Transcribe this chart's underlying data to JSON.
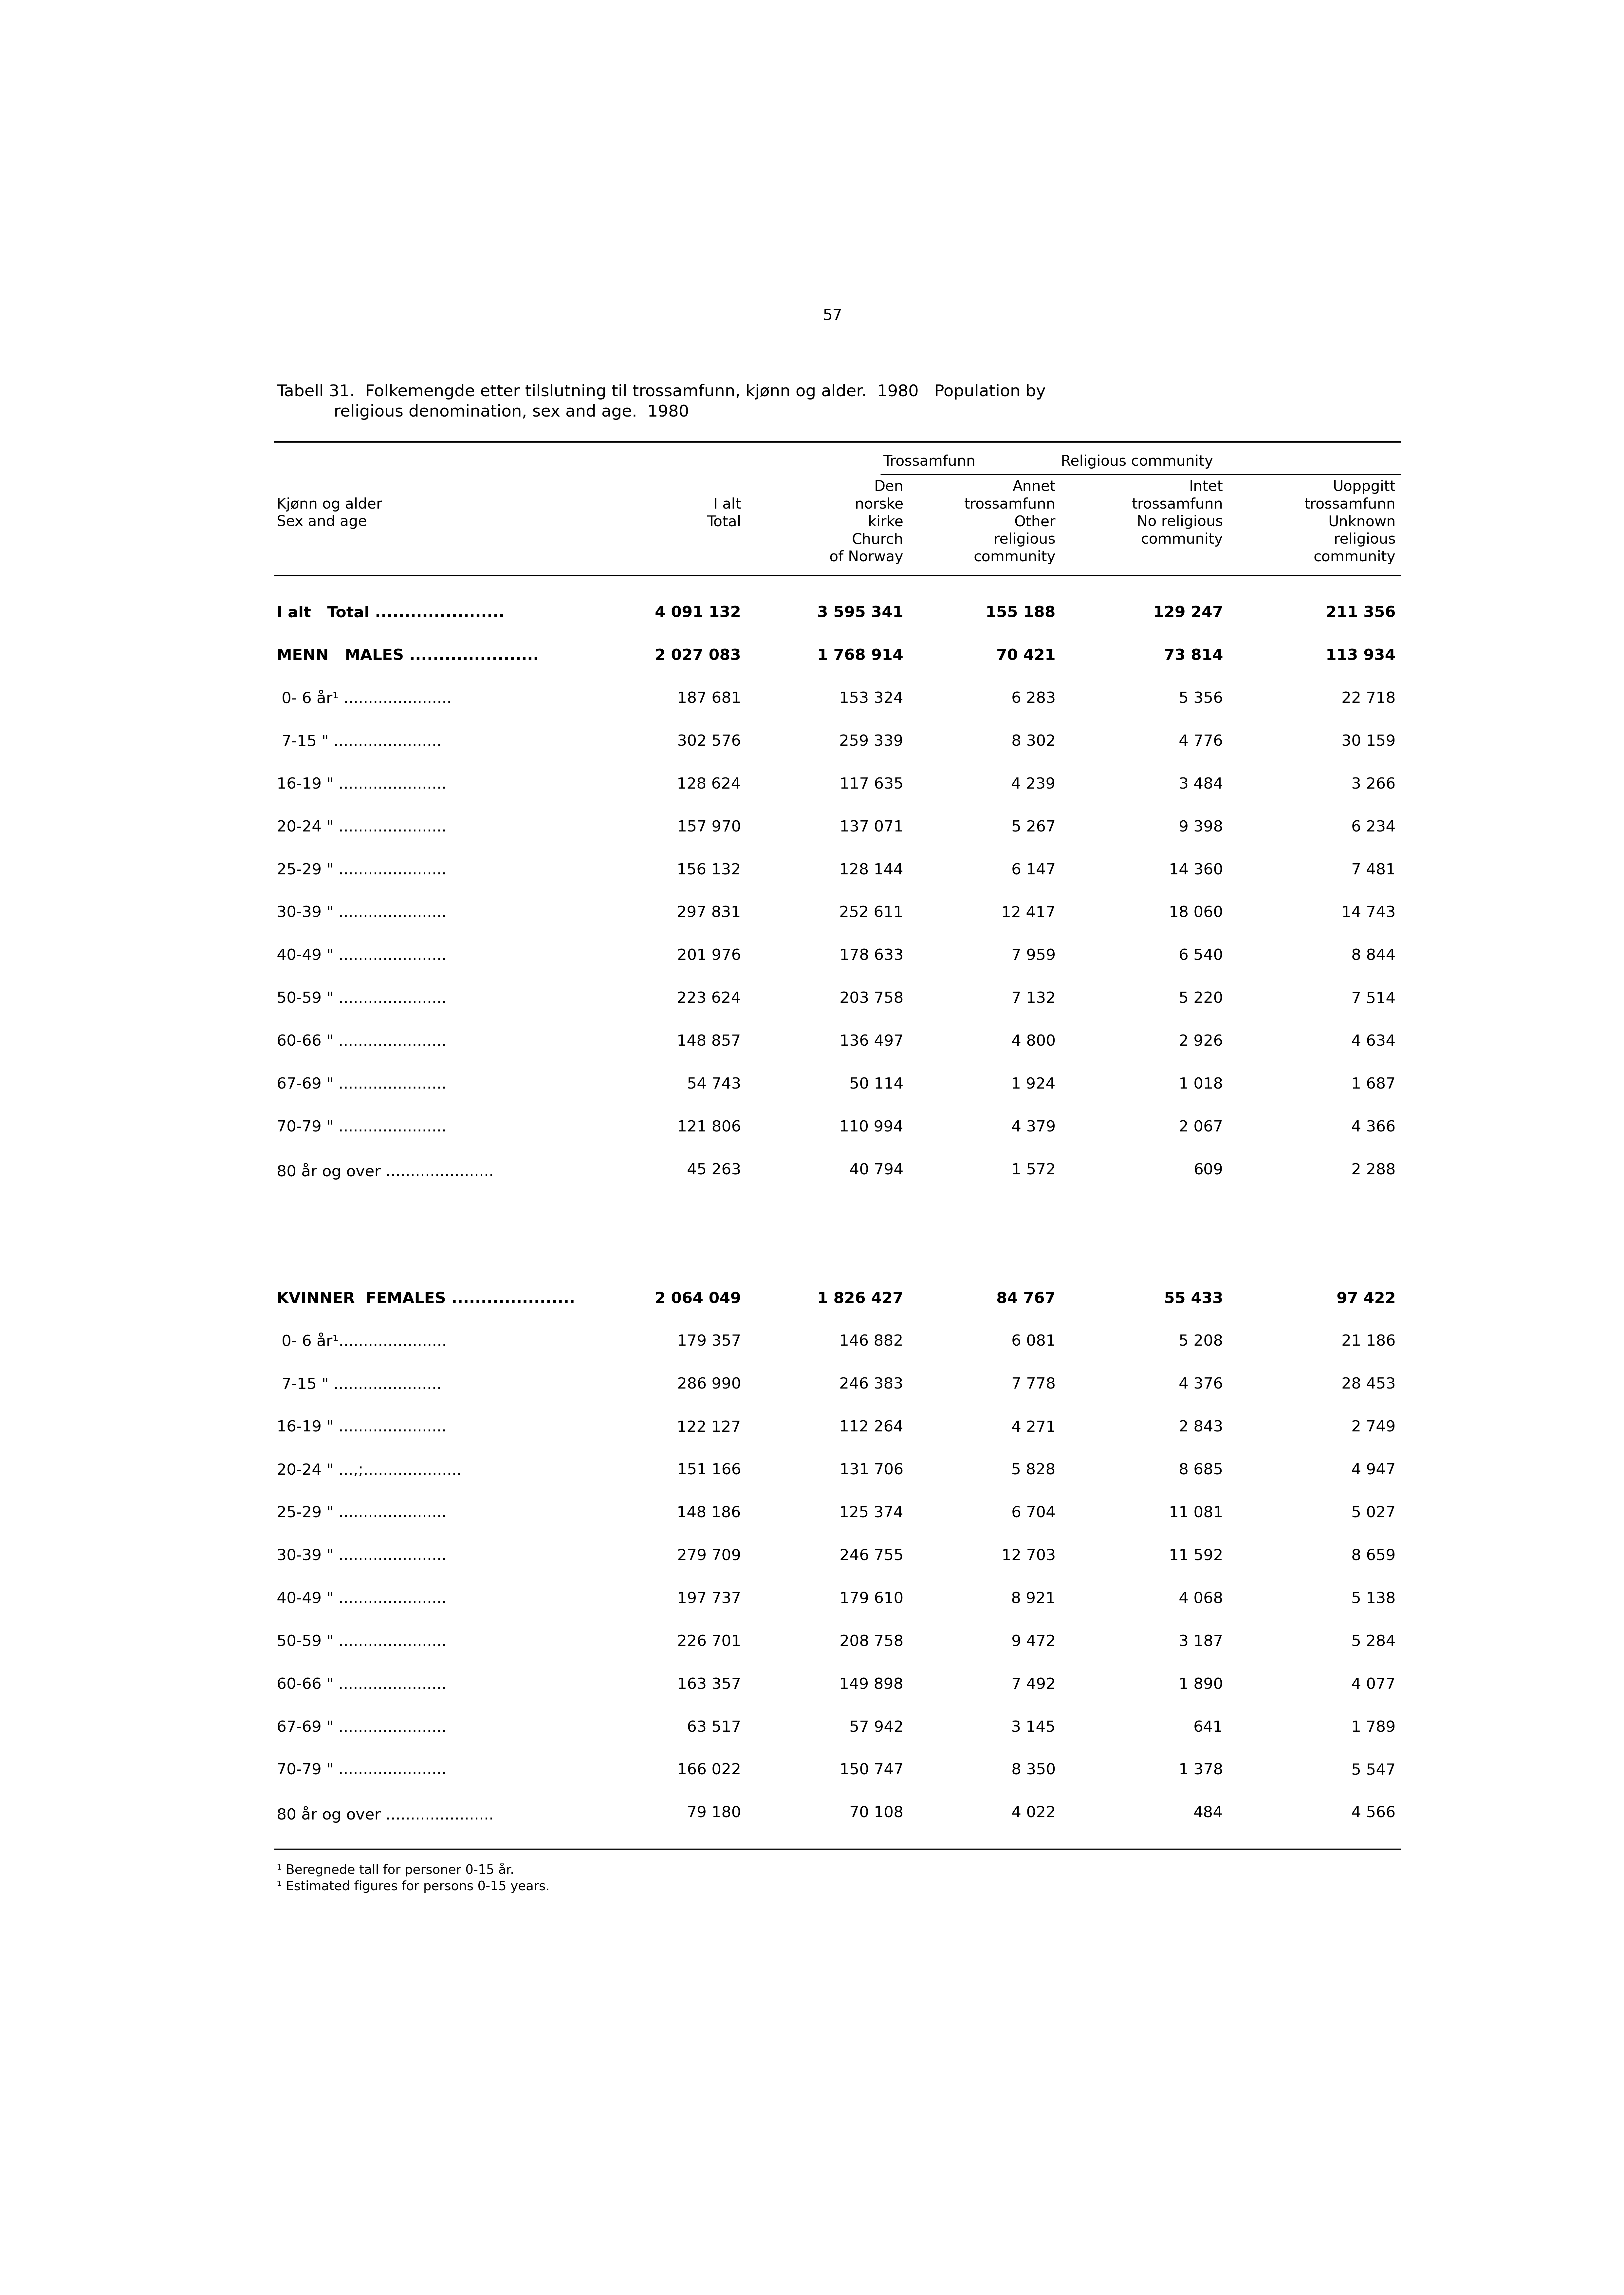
{
  "page_number": "57",
  "title_line1": "Tabell 31.  Folkemengde etter tilslutning til trossamfunn, kjønn og alder.  1980   Population by",
  "title_line2": "           religious denomination, sex and age.  1980",
  "col_header_group1": "Trossamfunn",
  "col_header_group2": "Religious community",
  "rows": [
    {
      "label": "I alt   Total ......................",
      "bold": true,
      "values": [
        "4 091 132",
        "3 595 341",
        "155 188",
        "129 247",
        "211 356"
      ]
    },
    {
      "label": "MENN   MALES ......................",
      "bold": true,
      "values": [
        "2 027 083",
        "1 768 914",
        "70 421",
        "73 814",
        "113 934"
      ]
    },
    {
      "label": " 0- 6 år¹ ......................",
      "bold": false,
      "values": [
        "187 681",
        "153 324",
        "6 283",
        "5 356",
        "22 718"
      ]
    },
    {
      "label": " 7-15 \" ......................",
      "bold": false,
      "values": [
        "302 576",
        "259 339",
        "8 302",
        "4 776",
        "30 159"
      ]
    },
    {
      "label": "16-19 \" ......................",
      "bold": false,
      "values": [
        "128 624",
        "117 635",
        "4 239",
        "3 484",
        "3 266"
      ]
    },
    {
      "label": "20-24 \" ......................",
      "bold": false,
      "values": [
        "157 970",
        "137 071",
        "5 267",
        "9 398",
        "6 234"
      ]
    },
    {
      "label": "25-29 \" ......................",
      "bold": false,
      "values": [
        "156 132",
        "128 144",
        "6 147",
        "14 360",
        "7 481"
      ]
    },
    {
      "label": "30-39 \" ......................",
      "bold": false,
      "values": [
        "297 831",
        "252 611",
        "12 417",
        "18 060",
        "14 743"
      ]
    },
    {
      "label": "40-49 \" ......................",
      "bold": false,
      "values": [
        "201 976",
        "178 633",
        "7 959",
        "6 540",
        "8 844"
      ]
    },
    {
      "label": "50-59 \" ......................",
      "bold": false,
      "values": [
        "223 624",
        "203 758",
        "7 132",
        "5 220",
        "7 514"
      ]
    },
    {
      "label": "60-66 \" ......................",
      "bold": false,
      "values": [
        "148 857",
        "136 497",
        "4 800",
        "2 926",
        "4 634"
      ]
    },
    {
      "label": "67-69 \" ......................",
      "bold": false,
      "values": [
        "54 743",
        "50 114",
        "1 924",
        "1 018",
        "1 687"
      ]
    },
    {
      "label": "70-79 \" ......................",
      "bold": false,
      "values": [
        "121 806",
        "110 994",
        "4 379",
        "2 067",
        "4 366"
      ]
    },
    {
      "label": "80 år og over ......................",
      "bold": false,
      "values": [
        "45 263",
        "40 794",
        "1 572",
        "609",
        "2 288"
      ]
    },
    {
      "label": "",
      "bold": false,
      "values": [
        "",
        "",
        "",
        "",
        ""
      ]
    },
    {
      "label": "",
      "bold": false,
      "values": [
        "",
        "",
        "",
        "",
        ""
      ]
    },
    {
      "label": "KVINNER  FEMALES .....................",
      "bold": true,
      "values": [
        "2 064 049",
        "1 826 427",
        "84 767",
        "55 433",
        "97 422"
      ]
    },
    {
      "label": " 0- 6 år¹......................",
      "bold": false,
      "values": [
        "179 357",
        "146 882",
        "6 081",
        "5 208",
        "21 186"
      ]
    },
    {
      "label": " 7-15 \" ......................",
      "bold": false,
      "values": [
        "286 990",
        "246 383",
        "7 778",
        "4 376",
        "28 453"
      ]
    },
    {
      "label": "16-19 \" ......................",
      "bold": false,
      "values": [
        "122 127",
        "112 264",
        "4 271",
        "2 843",
        "2 749"
      ]
    },
    {
      "label": "20-24 \" ...,;....................",
      "bold": false,
      "values": [
        "151 166",
        "131 706",
        "5 828",
        "8 685",
        "4 947"
      ]
    },
    {
      "label": "25-29 \" ......................",
      "bold": false,
      "values": [
        "148 186",
        "125 374",
        "6 704",
        "11 081",
        "5 027"
      ]
    },
    {
      "label": "30-39 \" ......................",
      "bold": false,
      "values": [
        "279 709",
        "246 755",
        "12 703",
        "11 592",
        "8 659"
      ]
    },
    {
      "label": "40-49 \" ......................",
      "bold": false,
      "values": [
        "197 737",
        "179 610",
        "8 921",
        "4 068",
        "5 138"
      ]
    },
    {
      "label": "50-59 \" ......................",
      "bold": false,
      "values": [
        "226 701",
        "208 758",
        "9 472",
        "3 187",
        "5 284"
      ]
    },
    {
      "label": "60-66 \" ......................",
      "bold": false,
      "values": [
        "163 357",
        "149 898",
        "7 492",
        "1 890",
        "4 077"
      ]
    },
    {
      "label": "67-69 \" ......................",
      "bold": false,
      "values": [
        "63 517",
        "57 942",
        "3 145",
        "641",
        "1 789"
      ]
    },
    {
      "label": "70-79 \" ......................",
      "bold": false,
      "values": [
        "166 022",
        "150 747",
        "8 350",
        "1 378",
        "5 547"
      ]
    },
    {
      "label": "80 år og over ......................",
      "bold": false,
      "values": [
        "79 180",
        "70 108",
        "4 022",
        "484",
        "4 566"
      ]
    }
  ],
  "footnote_line1": "¹ Beregnede tall for personer 0-15 år.",
  "footnote_line2": "¹ Estimated figures for persons 0-15 years.",
  "background_color": "#ffffff",
  "text_color": "#000000"
}
